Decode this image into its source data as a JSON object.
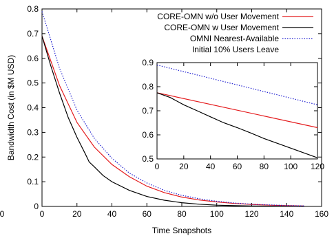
{
  "chart_data": [
    {
      "type": "line",
      "xlabel": "Time Snapshots",
      "ylabel": "Bandwidth Cost (in $M USD)",
      "xlim": [
        0,
        160
      ],
      "ylim": [
        0,
        0.8
      ],
      "xticks": [
        0,
        20,
        40,
        60,
        80,
        100,
        120,
        140,
        160
      ],
      "yticks": [
        0,
        0.1,
        0.2,
        0.3,
        0.4,
        0.5,
        0.6,
        0.7,
        0.8
      ],
      "xtick_labels": [
        "0",
        "20",
        "40",
        "60",
        "80",
        "100",
        "120",
        "140",
        "160"
      ],
      "ytick_labels": [
        "0",
        "0.1",
        "0.2",
        "0.3",
        "0.4",
        "0.5",
        "0.6",
        "0.7",
        "0.8"
      ],
      "offscreen_tick_label": "0",
      "legend_position": "top-right",
      "legend_note": "Initial 10% Users Leave",
      "series": [
        {
          "name": "CORE-OMN w/o User Movement",
          "color": "#e41a1c",
          "dash": "solid",
          "x": [
            0,
            10,
            20,
            30,
            40,
            50,
            60,
            70,
            80,
            90,
            100,
            110,
            120,
            130,
            140,
            150
          ],
          "y": [
            0.69,
            0.49,
            0.34,
            0.24,
            0.17,
            0.12,
            0.082,
            0.056,
            0.038,
            0.026,
            0.018,
            0.012,
            0.008,
            0.005,
            0.003,
            0.002
          ]
        },
        {
          "name": "CORE-OMN w User Movement",
          "color": "#000000",
          "dash": "solid",
          "x": [
            0,
            5,
            10,
            15,
            20,
            25,
            27,
            30,
            35,
            40,
            50,
            60,
            70,
            80,
            90,
            100,
            110,
            120,
            130,
            140,
            150
          ],
          "y": [
            0.69,
            0.57,
            0.46,
            0.36,
            0.28,
            0.21,
            0.18,
            0.16,
            0.125,
            0.1,
            0.065,
            0.04,
            0.025,
            0.015,
            0.009,
            0.005,
            0.003,
            0.002,
            0.001,
            0.0005,
            0.0
          ]
        },
        {
          "name": "OMNI Nearest-Available",
          "color": "#1f1fd0",
          "dash": "dotted",
          "x": [
            0,
            10,
            20,
            30,
            40,
            50,
            60,
            70,
            80,
            90,
            100,
            110,
            120,
            130,
            140,
            150
          ],
          "y": [
            0.79,
            0.56,
            0.39,
            0.275,
            0.195,
            0.135,
            0.095,
            0.065,
            0.045,
            0.031,
            0.021,
            0.014,
            0.009,
            0.006,
            0.004,
            0.002
          ]
        }
      ]
    },
    {
      "type": "line",
      "xlim": [
        0,
        120
      ],
      "ylim": [
        0.5,
        0.9
      ],
      "xticks": [
        0,
        20,
        40,
        60,
        80,
        100,
        120
      ],
      "yticks": [
        0.5,
        0.6,
        0.7,
        0.8,
        0.9
      ],
      "xtick_labels": [
        "0",
        "20",
        "40",
        "60",
        "80",
        "100",
        "120"
      ],
      "ytick_labels": [
        "0.5",
        "0.6",
        "0.7",
        "0.8",
        "0.9"
      ],
      "series": [
        {
          "color": "#e41a1c",
          "dash": "solid",
          "x": [
            0,
            120
          ],
          "y": [
            0.775,
            0.63
          ]
        },
        {
          "color": "#000000",
          "dash": "solid",
          "x": [
            0,
            10,
            20,
            30,
            40,
            50,
            60,
            70,
            80,
            90,
            100,
            110,
            120
          ],
          "y": [
            0.775,
            0.755,
            0.725,
            0.7,
            0.675,
            0.65,
            0.63,
            0.608,
            0.585,
            0.565,
            0.545,
            0.525,
            0.505
          ]
        },
        {
          "color": "#1f1fd0",
          "dash": "dotted",
          "x": [
            0,
            120
          ],
          "y": [
            0.89,
            0.725
          ]
        }
      ]
    }
  ]
}
